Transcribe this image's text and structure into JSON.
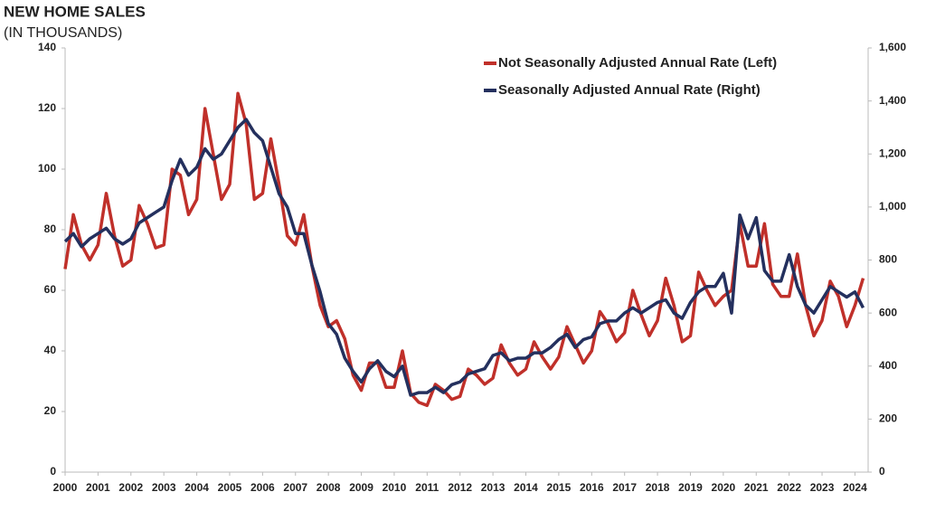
{
  "chart_data": {
    "type": "line",
    "title": "NEW HOME SALES",
    "subtitle": "(IN THOUSANDS)",
    "x": [
      2000,
      2000.25,
      2000.5,
      2000.75,
      2001,
      2001.25,
      2001.5,
      2001.75,
      2002,
      2002.25,
      2002.5,
      2002.75,
      2003,
      2003.25,
      2003.5,
      2003.75,
      2004,
      2004.25,
      2004.5,
      2004.75,
      2005,
      2005.25,
      2005.5,
      2005.75,
      2006,
      2006.25,
      2006.5,
      2006.75,
      2007,
      2007.25,
      2007.5,
      2007.75,
      2008,
      2008.25,
      2008.5,
      2008.75,
      2009,
      2009.25,
      2009.5,
      2009.75,
      2010,
      2010.25,
      2010.5,
      2010.75,
      2011,
      2011.25,
      2011.5,
      2011.75,
      2012,
      2012.25,
      2012.5,
      2012.75,
      2013,
      2013.25,
      2013.5,
      2013.75,
      2014,
      2014.25,
      2014.5,
      2014.75,
      2015,
      2015.25,
      2015.5,
      2015.75,
      2016,
      2016.25,
      2016.5,
      2016.75,
      2017,
      2017.25,
      2017.5,
      2017.75,
      2018,
      2018.25,
      2018.5,
      2018.75,
      2019,
      2019.25,
      2019.5,
      2019.75,
      2020,
      2020.25,
      2020.5,
      2020.75,
      2021,
      2021.25,
      2021.5,
      2021.75,
      2022,
      2022.25,
      2022.5,
      2022.75,
      2023,
      2023.25,
      2023.5,
      2023.75,
      2024,
      2024.25
    ],
    "xlim": [
      2000,
      2024.4
    ],
    "xticks": [
      2000,
      2001,
      2002,
      2003,
      2004,
      2005,
      2006,
      2007,
      2008,
      2009,
      2010,
      2011,
      2012,
      2013,
      2014,
      2015,
      2016,
      2017,
      2018,
      2019,
      2020,
      2021,
      2022,
      2023,
      2024
    ],
    "ylim": [
      0,
      140
    ],
    "yticks": [
      0,
      20,
      40,
      60,
      80,
      100,
      120,
      140
    ],
    "y2lim": [
      0,
      1600
    ],
    "y2ticks": [
      0,
      200,
      400,
      600,
      800,
      {
        "value": 1000,
        "label": "1,000"
      },
      {
        "value": 1200,
        "label": "1,200"
      },
      {
        "value": 1400,
        "label": "1,400"
      },
      {
        "value": 1600,
        "label": "1,600"
      }
    ],
    "legend": "upper-right",
    "series": [
      {
        "name": "Not Seasonally Adjusted Annual Rate (Left)",
        "color": "#c0302a",
        "values": [
          67,
          85,
          75,
          70,
          75,
          92,
          78,
          68,
          70,
          88,
          82,
          74,
          75,
          100,
          98,
          85,
          90,
          120,
          105,
          90,
          95,
          125,
          115,
          90,
          92,
          110,
          95,
          78,
          75,
          85,
          68,
          55,
          48,
          50,
          44,
          32,
          27,
          36,
          36,
          28,
          28,
          40,
          26,
          23,
          22,
          29,
          27,
          24,
          25,
          34,
          32,
          29,
          31,
          42,
          36,
          32,
          34,
          43,
          38,
          34,
          38,
          48,
          42,
          36,
          40,
          53,
          49,
          43,
          46,
          60,
          52,
          45,
          50,
          64,
          55,
          43,
          45,
          66,
          60,
          55,
          58,
          60,
          82,
          68,
          68,
          82,
          62,
          58,
          58,
          72,
          55,
          45,
          50,
          63,
          58,
          48,
          55,
          64
        ]
      },
      {
        "name": "Seasonally Adjusted Annual Rate (Right)",
        "color": "#24305e",
        "axis": "y2",
        "values": [
          870,
          900,
          850,
          880,
          900,
          920,
          880,
          860,
          880,
          940,
          960,
          980,
          1000,
          1100,
          1180,
          1120,
          1150,
          1220,
          1180,
          1200,
          1250,
          1300,
          1330,
          1280,
          1250,
          1150,
          1050,
          1000,
          900,
          900,
          780,
          680,
          560,
          520,
          430,
          380,
          340,
          390,
          420,
          380,
          360,
          400,
          290,
          300,
          300,
          320,
          300,
          330,
          340,
          370,
          380,
          390,
          440,
          450,
          420,
          430,
          430,
          450,
          450,
          470,
          500,
          520,
          470,
          500,
          510,
          560,
          570,
          570,
          600,
          620,
          600,
          620,
          640,
          650,
          600,
          580,
          640,
          680,
          700,
          700,
          750,
          600,
          970,
          880,
          960,
          760,
          720,
          720,
          820,
          700,
          630,
          600,
          650,
          700,
          680,
          660,
          680,
          620
        ]
      }
    ]
  }
}
